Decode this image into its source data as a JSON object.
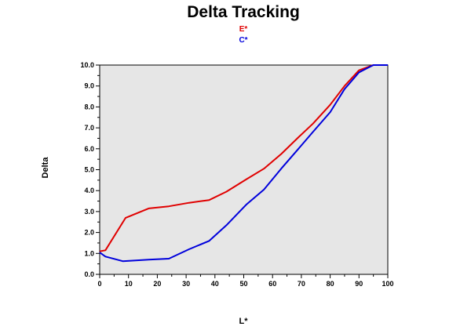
{
  "chart_data": {
    "type": "line",
    "title": "Delta Tracking",
    "xlabel": "L*",
    "ylabel": "Delta",
    "xlim": [
      0,
      100
    ],
    "ylim": [
      0,
      10
    ],
    "xticks": [
      "0",
      "10",
      "20",
      "30",
      "40",
      "50",
      "60",
      "70",
      "80",
      "90",
      "100"
    ],
    "yticks": [
      "0.0",
      "1.0",
      "2.0",
      "3.0",
      "4.0",
      "5.0",
      "6.0",
      "7.0",
      "8.0",
      "9.0",
      "10.0"
    ],
    "grid": false,
    "legend_position": "top-center",
    "plot_background": "#e6e6e6",
    "series": [
      {
        "name": "E*",
        "color": "#e00000",
        "points": [
          [
            0,
            1.1
          ],
          [
            2,
            1.15
          ],
          [
            9,
            2.7
          ],
          [
            17,
            3.15
          ],
          [
            24,
            3.25
          ],
          [
            31,
            3.42
          ],
          [
            38,
            3.55
          ],
          [
            44,
            3.95
          ],
          [
            51,
            4.55
          ],
          [
            57,
            5.05
          ],
          [
            63,
            5.75
          ],
          [
            69,
            6.55
          ],
          [
            74,
            7.2
          ],
          [
            80,
            8.1
          ],
          [
            85,
            9.0
          ],
          [
            90,
            9.75
          ],
          [
            95,
            10.0
          ],
          [
            100,
            10.0
          ]
        ]
      },
      {
        "name": "C*",
        "color": "#0000dc",
        "points": [
          [
            0,
            1.05
          ],
          [
            2,
            0.85
          ],
          [
            8,
            0.63
          ],
          [
            17,
            0.7
          ],
          [
            24,
            0.75
          ],
          [
            31,
            1.2
          ],
          [
            38,
            1.6
          ],
          [
            44,
            2.35
          ],
          [
            51,
            3.35
          ],
          [
            57,
            4.05
          ],
          [
            63,
            5.05
          ],
          [
            69,
            6.0
          ],
          [
            74,
            6.8
          ],
          [
            80,
            7.75
          ],
          [
            85,
            8.85
          ],
          [
            90,
            9.65
          ],
          [
            95,
            10.0
          ],
          [
            100,
            10.0
          ]
        ]
      }
    ]
  }
}
